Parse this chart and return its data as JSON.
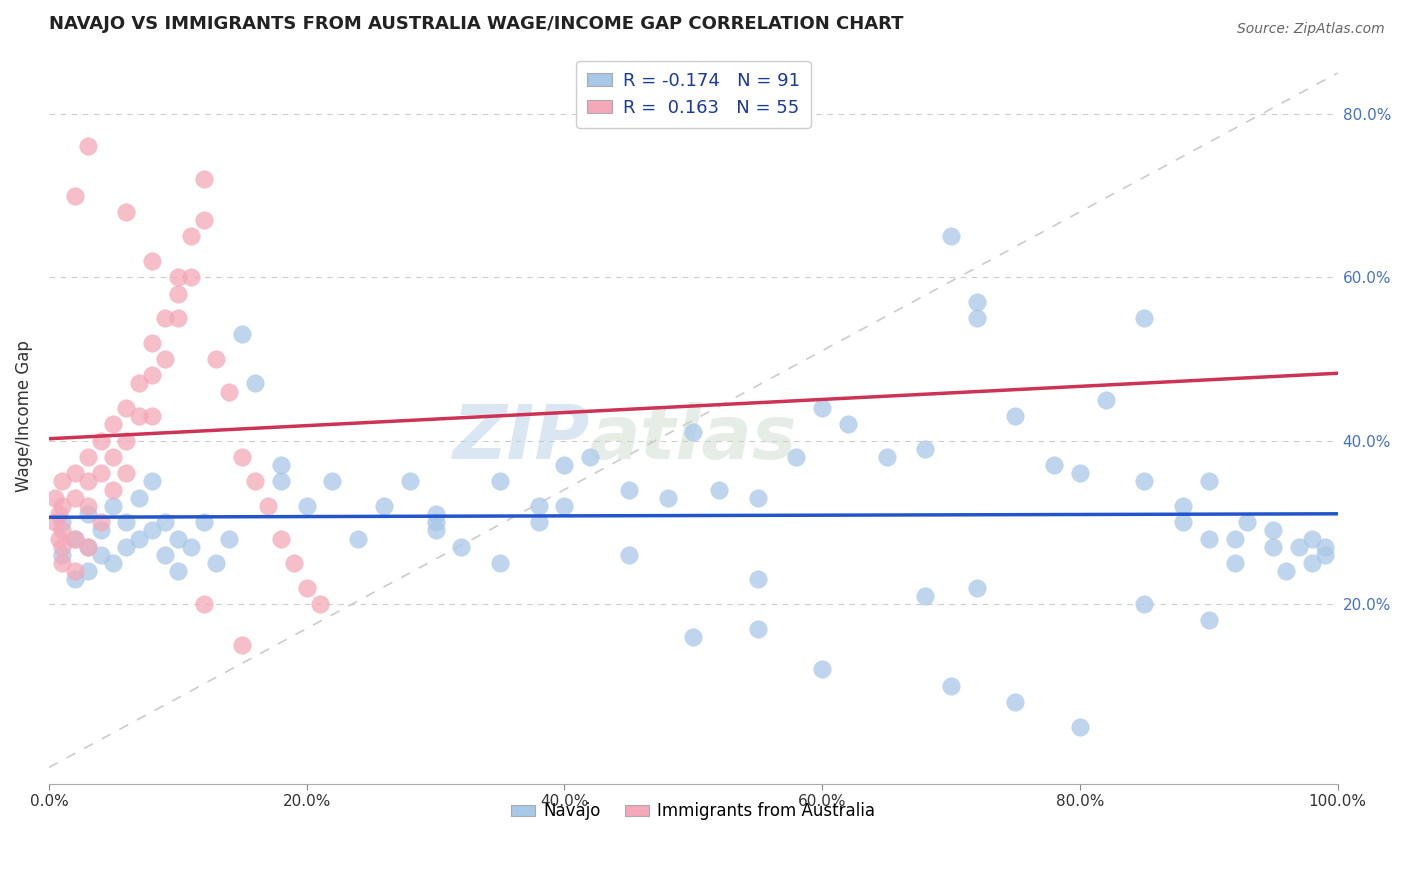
{
  "title": "NAVAJO VS IMMIGRANTS FROM AUSTRALIA WAGE/INCOME GAP CORRELATION CHART",
  "source": "Source: ZipAtlas.com",
  "ylabel": "Wage/Income Gap",
  "xlim": [
    0.0,
    1.0
  ],
  "ylim": [
    -0.02,
    0.88
  ],
  "right_ytick_labels": [
    "20.0%",
    "40.0%",
    "60.0%",
    "80.0%"
  ],
  "right_ytick_vals": [
    0.2,
    0.4,
    0.6,
    0.8
  ],
  "bottom_xtick_labels": [
    "0.0%",
    "20.0%",
    "40.0%",
    "60.0%",
    "80.0%",
    "100.0%"
  ],
  "bottom_xtick_vals": [
    0.0,
    0.2,
    0.4,
    0.6,
    0.8,
    1.0
  ],
  "navajo_R": -0.174,
  "navajo_N": 91,
  "australia_R": 0.163,
  "australia_N": 55,
  "navajo_color": "#a8c8e8",
  "australia_color": "#f4a8b8",
  "navajo_line_color": "#2255cc",
  "australia_line_color": "#cc3355",
  "watermark_zip": "ZIP",
  "watermark_atlas": "atlas",
  "navajo_x": [
    0.01,
    0.01,
    0.02,
    0.02,
    0.03,
    0.03,
    0.03,
    0.04,
    0.04,
    0.05,
    0.05,
    0.06,
    0.06,
    0.07,
    0.07,
    0.08,
    0.08,
    0.09,
    0.09,
    0.1,
    0.1,
    0.11,
    0.12,
    0.13,
    0.14,
    0.15,
    0.16,
    0.18,
    0.2,
    0.22,
    0.24,
    0.26,
    0.28,
    0.3,
    0.32,
    0.35,
    0.38,
    0.4,
    0.42,
    0.45,
    0.48,
    0.5,
    0.52,
    0.55,
    0.58,
    0.6,
    0.62,
    0.65,
    0.68,
    0.7,
    0.72,
    0.72,
    0.75,
    0.78,
    0.8,
    0.82,
    0.85,
    0.85,
    0.88,
    0.88,
    0.9,
    0.9,
    0.92,
    0.92,
    0.93,
    0.95,
    0.95,
    0.96,
    0.97,
    0.98,
    0.98,
    0.99,
    0.99,
    0.18,
    0.3,
    0.4,
    0.3,
    0.35,
    0.5,
    0.55,
    0.6,
    0.75,
    0.8,
    0.38,
    0.45,
    0.68,
    0.72,
    0.85,
    0.9,
    0.55,
    0.7
  ],
  "navajo_y": [
    0.3,
    0.26,
    0.28,
    0.23,
    0.27,
    0.24,
    0.31,
    0.29,
    0.26,
    0.32,
    0.25,
    0.3,
    0.27,
    0.33,
    0.28,
    0.35,
    0.29,
    0.3,
    0.26,
    0.28,
    0.24,
    0.27,
    0.3,
    0.25,
    0.28,
    0.53,
    0.47,
    0.37,
    0.32,
    0.35,
    0.28,
    0.32,
    0.35,
    0.3,
    0.27,
    0.35,
    0.32,
    0.37,
    0.38,
    0.34,
    0.33,
    0.41,
    0.34,
    0.33,
    0.38,
    0.44,
    0.42,
    0.38,
    0.39,
    0.65,
    0.55,
    0.57,
    0.43,
    0.37,
    0.36,
    0.45,
    0.35,
    0.55,
    0.3,
    0.32,
    0.35,
    0.28,
    0.28,
    0.25,
    0.3,
    0.27,
    0.29,
    0.24,
    0.27,
    0.28,
    0.25,
    0.27,
    0.26,
    0.35,
    0.31,
    0.32,
    0.29,
    0.25,
    0.16,
    0.17,
    0.12,
    0.08,
    0.05,
    0.3,
    0.26,
    0.21,
    0.22,
    0.2,
    0.18,
    0.23,
    0.1
  ],
  "australia_x": [
    0.005,
    0.005,
    0.008,
    0.008,
    0.01,
    0.01,
    0.01,
    0.01,
    0.01,
    0.02,
    0.02,
    0.02,
    0.02,
    0.03,
    0.03,
    0.03,
    0.03,
    0.04,
    0.04,
    0.04,
    0.05,
    0.05,
    0.05,
    0.06,
    0.06,
    0.06,
    0.07,
    0.07,
    0.08,
    0.08,
    0.08,
    0.09,
    0.09,
    0.1,
    0.1,
    0.11,
    0.11,
    0.12,
    0.12,
    0.13,
    0.14,
    0.15,
    0.16,
    0.17,
    0.18,
    0.19,
    0.2,
    0.21,
    0.02,
    0.03,
    0.06,
    0.08,
    0.1,
    0.12,
    0.15
  ],
  "australia_y": [
    0.3,
    0.33,
    0.31,
    0.28,
    0.35,
    0.29,
    0.32,
    0.27,
    0.25,
    0.36,
    0.33,
    0.28,
    0.24,
    0.38,
    0.35,
    0.32,
    0.27,
    0.4,
    0.36,
    0.3,
    0.42,
    0.38,
    0.34,
    0.44,
    0.4,
    0.36,
    0.47,
    0.43,
    0.52,
    0.48,
    0.43,
    0.55,
    0.5,
    0.6,
    0.55,
    0.65,
    0.6,
    0.72,
    0.67,
    0.5,
    0.46,
    0.38,
    0.35,
    0.32,
    0.28,
    0.25,
    0.22,
    0.2,
    0.7,
    0.76,
    0.68,
    0.62,
    0.58,
    0.2,
    0.15
  ]
}
